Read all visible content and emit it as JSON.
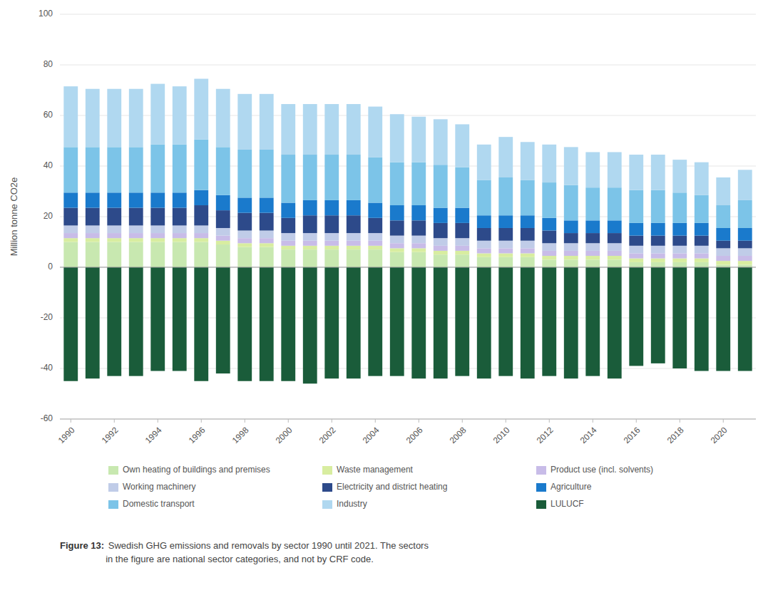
{
  "chart_data": {
    "type": "bar",
    "stacked": true,
    "y_label": "Million tonne CO2e",
    "categories": [
      "1990",
      null,
      "1992",
      null,
      "1994",
      null,
      "1996",
      null,
      "1998",
      null,
      "2000",
      null,
      "2002",
      null,
      "2004",
      null,
      "2006",
      null,
      "2008",
      null,
      "2010",
      null,
      "2012",
      null,
      "2014",
      null,
      "2016",
      null,
      "2018",
      null,
      "2020",
      null
    ],
    "series": [
      {
        "name": "Own heating of buildings and premises",
        "color": "#c8e8b0",
        "values": [
          10,
          10,
          10,
          10,
          10,
          10,
          10,
          9,
          8,
          8,
          7,
          7,
          7,
          7,
          7,
          6,
          6,
          5,
          5,
          4,
          4,
          4,
          3,
          3,
          3,
          3,
          2,
          2,
          2,
          2,
          1,
          1
        ]
      },
      {
        "name": "Waste management",
        "color": "#d8eda0",
        "values": [
          1.5,
          1.5,
          1.5,
          1.5,
          1.5,
          1.5,
          1.5,
          1.5,
          1.5,
          1.5,
          1.5,
          1.5,
          1.5,
          1.5,
          1.5,
          1.5,
          1.5,
          1.5,
          1.5,
          1.5,
          1.5,
          1.5,
          1.5,
          1.5,
          1.5,
          1.5,
          1.5,
          1.5,
          1.5,
          1.5,
          1.5,
          1.5
        ]
      },
      {
        "name": "Product use (incl. solvents)",
        "color": "#c8bce8",
        "values": [
          2,
          2,
          2,
          2,
          2,
          2,
          2,
          2,
          2,
          2,
          2,
          2,
          2,
          2,
          2,
          2,
          2,
          2,
          2,
          2,
          2,
          2,
          2,
          2,
          2,
          2,
          2,
          2,
          2,
          2,
          2,
          2
        ]
      },
      {
        "name": "Working machinery",
        "color": "#c0cce8",
        "values": [
          3,
          3,
          3,
          3,
          3,
          3,
          3,
          3,
          3,
          3,
          3,
          3,
          3,
          3,
          3,
          3,
          3,
          3,
          3,
          3,
          3,
          3,
          3,
          3,
          3,
          3,
          3,
          3,
          3,
          3,
          3,
          3
        ]
      },
      {
        "name": "Electricity and district heating",
        "color": "#2d4a8a",
        "values": [
          7,
          7,
          7,
          7,
          7,
          7,
          8,
          7,
          7,
          7,
          6,
          7,
          7,
          7,
          6,
          6,
          6,
          6,
          6,
          5,
          5,
          5,
          5,
          4,
          4,
          4,
          4,
          4,
          4,
          4,
          3,
          3
        ]
      },
      {
        "name": "Agriculture",
        "color": "#1a7acc",
        "values": [
          6,
          6,
          6,
          6,
          6,
          6,
          6,
          6,
          6,
          6,
          6,
          6,
          6,
          6,
          6,
          6,
          6,
          6,
          6,
          5,
          5,
          5,
          5,
          5,
          5,
          5,
          5,
          5,
          5,
          5,
          5,
          5
        ]
      },
      {
        "name": "Domestic transport",
        "color": "#7cc4e8",
        "values": [
          18,
          18,
          18,
          18,
          19,
          19,
          20,
          19,
          19,
          19,
          19,
          18,
          18,
          18,
          18,
          17,
          17,
          17,
          16,
          14,
          15,
          14,
          14,
          14,
          13,
          13,
          13,
          13,
          12,
          11,
          9,
          11
        ]
      },
      {
        "name": "Industry",
        "color": "#b0d8f0",
        "values": [
          24,
          23,
          23,
          23,
          24,
          23,
          24,
          23,
          22,
          22,
          20,
          20,
          20,
          20,
          20,
          19,
          18,
          18,
          17,
          14,
          16,
          15,
          15,
          15,
          14,
          14,
          14,
          14,
          13,
          13,
          11,
          12
        ]
      },
      {
        "name": "LULUCF",
        "color": "#1a5c3a",
        "values": [
          -45,
          -44,
          -43,
          -43,
          -41,
          -41,
          -45,
          -42,
          -45,
          -45,
          -45,
          -46,
          -44,
          -44,
          -43,
          -43,
          -44,
          -44,
          -43,
          -44,
          -43,
          -44,
          -43,
          -44,
          -43,
          -44,
          -39,
          -38,
          -40,
          -41,
          -41,
          -41
        ]
      }
    ],
    "ylim": [
      -60,
      100
    ],
    "yticks": [
      -60,
      -40,
      -20,
      0,
      20,
      40,
      60,
      80,
      100
    ],
    "grid": true,
    "legend": "bottom",
    "annotations": [
      "Figure 13:",
      " Swedish GHG emissions and removals by sector 1990 until 2021. The sectors\nin the figure are national sector categories, and not by CRF code."
    ]
  }
}
